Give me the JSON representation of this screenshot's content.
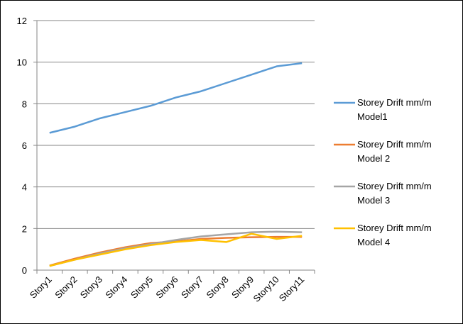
{
  "chart_data": {
    "type": "line",
    "categories": [
      "Story1",
      "Story2",
      "Story3",
      "Story4",
      "Story5",
      "Story6",
      "Story7",
      "Story8",
      "Story9",
      "Story10",
      "Story11"
    ],
    "series": [
      {
        "name": "Storey Drift mm/m Model1",
        "color": "#5b9bd5",
        "values": [
          6.6,
          6.9,
          7.3,
          7.6,
          7.9,
          8.3,
          8.6,
          9.0,
          9.4,
          9.8,
          9.95
        ]
      },
      {
        "name": "Storey Drift mm/m Model 2",
        "color": "#ed7d31",
        "values": [
          0.22,
          0.55,
          0.85,
          1.1,
          1.3,
          1.38,
          1.5,
          1.55,
          1.58,
          1.6,
          1.6
        ]
      },
      {
        "name": "Storey Drift mm/m Model 3",
        "color": "#a5a5a5",
        "values": [
          0.2,
          0.5,
          0.8,
          1.05,
          1.25,
          1.45,
          1.62,
          1.72,
          1.82,
          1.85,
          1.82
        ]
      },
      {
        "name": "Storey Drift mm/m Model 4",
        "color": "#ffc000",
        "values": [
          0.2,
          0.5,
          0.75,
          1.0,
          1.2,
          1.35,
          1.45,
          1.35,
          1.75,
          1.5,
          1.65
        ]
      }
    ],
    "ylim": [
      0,
      12
    ],
    "yticks": [
      0,
      2,
      4,
      6,
      8,
      10,
      12
    ],
    "grid": true,
    "legend": "right"
  }
}
